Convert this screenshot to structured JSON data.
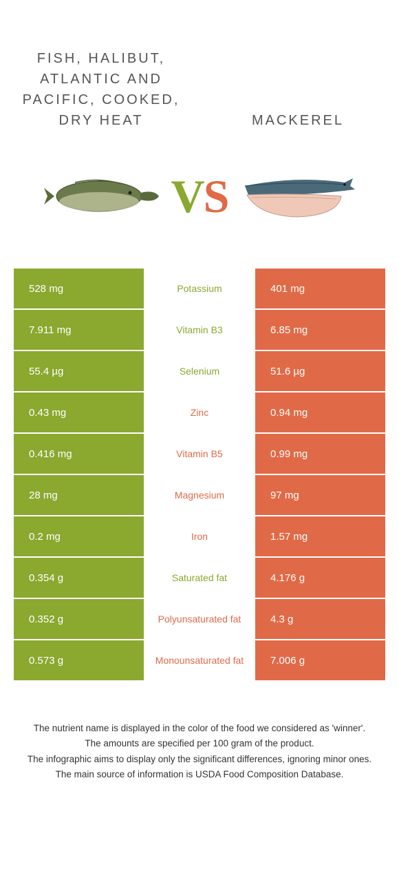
{
  "header": {
    "left_title": "Fish, Halibut, Atlantic and Pacific, cooked, dry heat",
    "right_title": "Mackerel"
  },
  "vs": {
    "v": "V",
    "s": "S"
  },
  "colors": {
    "green": "#8ba82f",
    "orange": "#e06a47",
    "background": "#ffffff"
  },
  "table": {
    "rows": [
      {
        "nutrient": "Potassium",
        "left": "528 mg",
        "right": "401 mg",
        "winner": "left"
      },
      {
        "nutrient": "Vitamin B3",
        "left": "7.911 mg",
        "right": "6.85 mg",
        "winner": "left"
      },
      {
        "nutrient": "Selenium",
        "left": "55.4 µg",
        "right": "51.6 µg",
        "winner": "left"
      },
      {
        "nutrient": "Zinc",
        "left": "0.43 mg",
        "right": "0.94 mg",
        "winner": "right"
      },
      {
        "nutrient": "Vitamin B5",
        "left": "0.416 mg",
        "right": "0.99 mg",
        "winner": "right"
      },
      {
        "nutrient": "Magnesium",
        "left": "28 mg",
        "right": "97 mg",
        "winner": "right"
      },
      {
        "nutrient": "Iron",
        "left": "0.2 mg",
        "right": "1.57 mg",
        "winner": "right"
      },
      {
        "nutrient": "Saturated fat",
        "left": "0.354 g",
        "right": "4.176 g",
        "winner": "left"
      },
      {
        "nutrient": "Polyunsaturated fat",
        "left": "0.352 g",
        "right": "4.3 g",
        "winner": "right"
      },
      {
        "nutrient": "Monounsaturated fat",
        "left": "0.573 g",
        "right": "7.006 g",
        "winner": "right"
      }
    ]
  },
  "footer": {
    "line1": "The nutrient name is displayed in the color of the food we considered as 'winner'.",
    "line2": "The amounts are specified per 100 gram of the product.",
    "line3": "The infographic aims to display only the significant differences, ignoring minor ones.",
    "line4": "The main source of information is USDA Food Composition Database."
  }
}
